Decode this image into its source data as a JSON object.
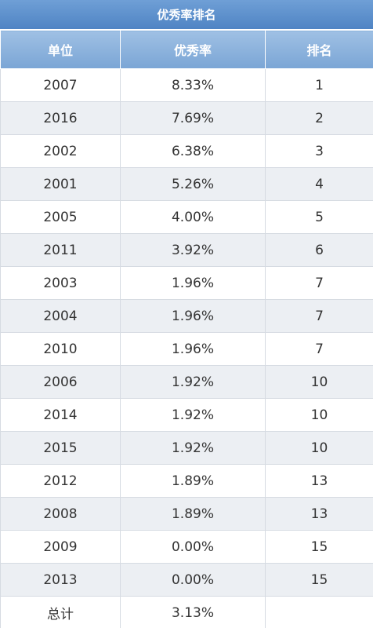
{
  "table": {
    "title": "优秀率排名",
    "header": [
      "单位",
      "优秀率",
      "排名"
    ],
    "rows": [
      [
        "2007",
        "8.33%",
        "1"
      ],
      [
        "2016",
        "7.69%",
        "2"
      ],
      [
        "2002",
        "6.38%",
        "3"
      ],
      [
        "2001",
        "5.26%",
        "4"
      ],
      [
        "2005",
        "4.00%",
        "5"
      ],
      [
        "2011",
        "3.92%",
        "6"
      ],
      [
        "2003",
        "1.96%",
        "7"
      ],
      [
        "2004",
        "1.96%",
        "7"
      ],
      [
        "2010",
        "1.96%",
        "7"
      ],
      [
        "2006",
        "1.92%",
        "10"
      ],
      [
        "2014",
        "1.92%",
        "10"
      ],
      [
        "2015",
        "1.92%",
        "10"
      ],
      [
        "2012",
        "1.89%",
        "13"
      ],
      [
        "2008",
        "1.89%",
        "13"
      ],
      [
        "2009",
        "0.00%",
        "15"
      ],
      [
        "2013",
        "0.00%",
        "15"
      ],
      [
        "总计",
        "3.13%"
      ]
    ]
  }
}
